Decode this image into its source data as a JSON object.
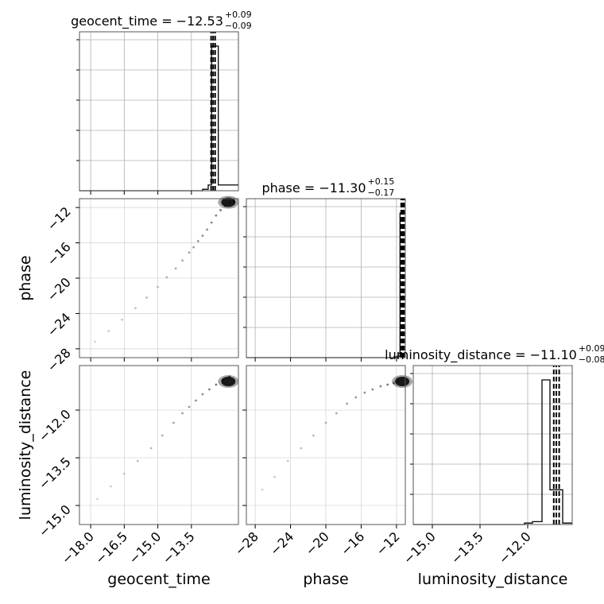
{
  "chart_data": {
    "type": "corner",
    "grid": true,
    "parameters": [
      {
        "name": "geocent_time",
        "axis_label": "geocent_time",
        "title_text": "geocent_time = −12.53",
        "title_plus": "+0.09",
        "title_minus": "−0.09",
        "median": -12.53,
        "err_plus": 0.09,
        "err_minus": 0.09,
        "quantiles": [
          -12.62,
          -12.53,
          -12.44
        ],
        "range": [
          -18.5,
          -11.4
        ],
        "ticks": [
          -18.0,
          -16.5,
          -15.0,
          -13.5
        ],
        "tick_labels": [
          "−18.0",
          "−16.5",
          "−15.0",
          "−13.5"
        ]
      },
      {
        "name": "phase",
        "axis_label": "phase",
        "title_text": "phase = −11.30",
        "title_plus": "+0.15",
        "title_minus": "−0.17",
        "median": -11.3,
        "err_plus": 0.15,
        "err_minus": 0.17,
        "quantiles": [
          -11.47,
          -11.3,
          -11.15
        ],
        "range": [
          -29.0,
          -11.0
        ],
        "ticks": [
          -28,
          -24,
          -20,
          -16,
          -12
        ],
        "tick_labels": [
          "−28",
          "−24",
          "−20",
          "−16",
          "−12"
        ]
      },
      {
        "name": "luminosity_distance",
        "axis_label": "luminosity_distance",
        "title_text": "luminosity_distance = −11.10",
        "title_plus": "+0.09",
        "title_minus": "−0.08",
        "median": -11.1,
        "err_plus": 0.09,
        "err_minus": 0.08,
        "quantiles": [
          -11.18,
          -11.1,
          -11.01
        ],
        "range": [
          -15.6,
          -10.6
        ],
        "ticks": [
          -15.0,
          -13.5,
          -12.0
        ],
        "tick_labels": [
          "−15.0",
          "−13.5",
          "−12.0"
        ]
      }
    ],
    "histograms": [
      {
        "param": "geocent_time",
        "bins": [
          {
            "start": -18.5,
            "end": -13.0,
            "count": 0.0
          },
          {
            "start": -13.0,
            "end": -12.75,
            "count": 0.01
          },
          {
            "start": -12.75,
            "end": -12.6,
            "count": 0.04
          },
          {
            "start": -12.6,
            "end": -12.3,
            "count": 1.0
          },
          {
            "start": -12.3,
            "end": -11.4,
            "count": 0.04
          }
        ]
      },
      {
        "param": "phase",
        "bins": [
          {
            "start": -29.0,
            "end": -12.3,
            "count": 0.0
          },
          {
            "start": -12.3,
            "end": -11.9,
            "count": 0.005
          },
          {
            "start": -11.9,
            "end": -11.6,
            "count": 0.01
          },
          {
            "start": -11.6,
            "end": -11.0,
            "count": 1.0
          }
        ]
      },
      {
        "param": "luminosity_distance",
        "bins": [
          {
            "start": -15.6,
            "end": -12.1,
            "count": 0.0
          },
          {
            "start": -12.1,
            "end": -11.85,
            "count": 0.01
          },
          {
            "start": -11.85,
            "end": -11.55,
            "count": 0.02
          },
          {
            "start": -11.55,
            "end": -11.3,
            "count": 1.0
          },
          {
            "start": -11.3,
            "end": -10.9,
            "count": 0.24
          },
          {
            "start": -10.9,
            "end": -10.6,
            "count": 0.01
          }
        ]
      }
    ],
    "scatter_pairs": [
      {
        "x_param": "geocent_time",
        "y_param": "phase",
        "points": [
          [
            -17.8,
            -27.2
          ],
          [
            -17.2,
            -26.0
          ],
          [
            -16.6,
            -24.7
          ],
          [
            -16.0,
            -23.4
          ],
          [
            -15.5,
            -22.2
          ],
          [
            -15.0,
            -21.0
          ],
          [
            -14.6,
            -19.9
          ],
          [
            -14.2,
            -18.9
          ],
          [
            -13.9,
            -18.0
          ],
          [
            -13.6,
            -17.1
          ],
          [
            -13.4,
            -16.5
          ],
          [
            -13.2,
            -15.8
          ],
          [
            -13.0,
            -15.2
          ],
          [
            -12.8,
            -14.5
          ],
          [
            -12.6,
            -13.7
          ],
          [
            -12.4,
            -12.9
          ],
          [
            -12.2,
            -12.3
          ],
          [
            -12.0,
            -11.8
          ],
          [
            -11.8,
            -11.5
          ],
          [
            -11.6,
            -11.3
          ]
        ],
        "core": {
          "x": -11.85,
          "y": -11.4
        }
      },
      {
        "x_param": "geocent_time",
        "y_param": "luminosity_distance",
        "points": [
          [
            -17.7,
            -14.8
          ],
          [
            -17.1,
            -14.4
          ],
          [
            -16.5,
            -14.0
          ],
          [
            -15.9,
            -13.6
          ],
          [
            -15.3,
            -13.2
          ],
          [
            -14.8,
            -12.8
          ],
          [
            -14.3,
            -12.4
          ],
          [
            -13.9,
            -12.1
          ],
          [
            -13.6,
            -11.9
          ],
          [
            -13.3,
            -11.7
          ],
          [
            -13.0,
            -11.5
          ],
          [
            -12.7,
            -11.35
          ],
          [
            -12.4,
            -11.2
          ],
          [
            -12.1,
            -11.05
          ],
          [
            -11.8,
            -10.95
          ]
        ],
        "core": {
          "x": -11.85,
          "y": -11.1
        }
      },
      {
        "x_param": "phase",
        "y_param": "luminosity_distance",
        "points": [
          [
            -27.2,
            -14.5
          ],
          [
            -25.8,
            -14.1
          ],
          [
            -24.3,
            -13.6
          ],
          [
            -22.8,
            -13.2
          ],
          [
            -21.4,
            -12.8
          ],
          [
            -20.0,
            -12.4
          ],
          [
            -18.8,
            -12.1
          ],
          [
            -17.6,
            -11.8
          ],
          [
            -16.6,
            -11.6
          ],
          [
            -15.6,
            -11.45
          ],
          [
            -14.7,
            -11.35
          ],
          [
            -13.8,
            -11.25
          ],
          [
            -13.0,
            -11.2
          ],
          [
            -12.3,
            -11.15
          ],
          [
            -11.8,
            -11.1
          ]
        ],
        "core": {
          "x": -11.35,
          "y": -11.1
        }
      }
    ]
  }
}
